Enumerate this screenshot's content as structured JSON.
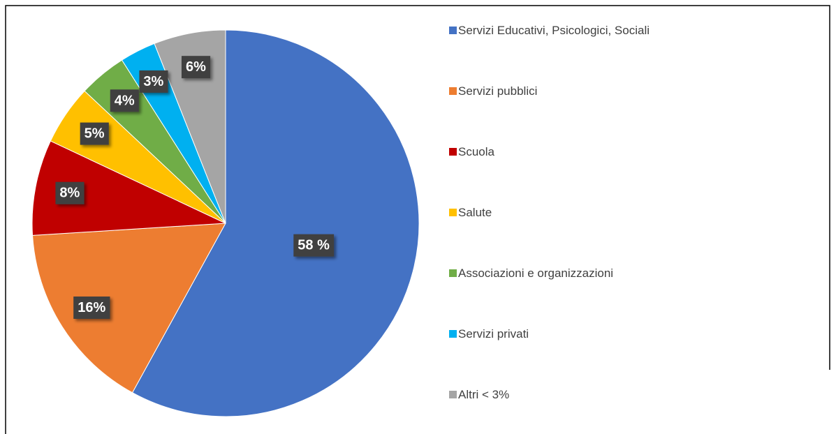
{
  "chart_data": {
    "type": "pie",
    "categories": [
      "Servizi Educativi, Psicologici, Sociali",
      "Servizi pubblici",
      "Scuola",
      "Salute",
      "Associazioni e organizzazioni",
      "Servizi privati",
      "Altri < 3%"
    ],
    "values": [
      58,
      16,
      8,
      5,
      4,
      3,
      6
    ],
    "value_labels": [
      "58 %",
      "16%",
      "8%",
      "5%",
      "4%",
      "3%",
      "6%"
    ],
    "colors": [
      "#4472C4",
      "#ED7D31",
      "#C00000",
      "#FFC000",
      "#70AD47",
      "#00B0F0",
      "#A5A5A5"
    ],
    "legend": "right"
  }
}
